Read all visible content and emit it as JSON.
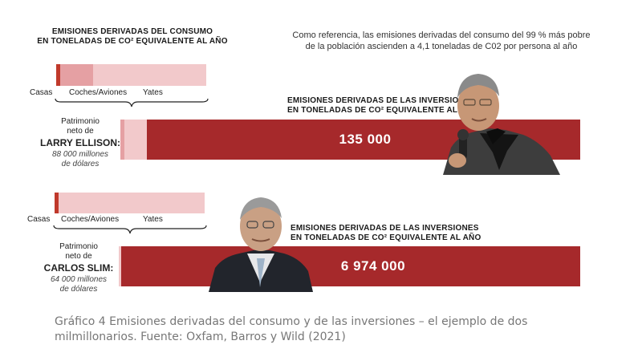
{
  "consumption_title": [
    "EMISIONES DERIVADAS DEL CONSUMO",
    "EN TONELADAS DE CO² EQUIVALENTE AL AÑO"
  ],
  "reference_note": [
    "Como referencia, las emisiones derivadas del consumo del 99 % más pobre",
    "de la población ascienden a 4,1 toneladas de C02 por persona al año"
  ],
  "investment_title": [
    "EMISIONES DERIVADAS DE LAS INVERSIONES",
    "EN TONELADAS DE CO² EQUIVALENTE AL AÑO"
  ],
  "people": [
    {
      "prefix": [
        "Patrimonio",
        "neto de"
      ],
      "name": "LARRY ELLISON:",
      "worth": [
        "88 000 millones",
        "de dólares"
      ],
      "categories": [
        "Casas",
        "Coches/Aviones",
        "Yates"
      ],
      "investment_label": "135 000"
    },
    {
      "prefix": [
        "Patrimonio",
        "neto de"
      ],
      "name": "CARLOS SLIM:",
      "worth": [
        "64 000 millones",
        "de dólares"
      ],
      "categories": [
        "Casas",
        "Coches/Aviones",
        "Yates"
      ],
      "investment_label": "6 974 000"
    }
  ],
  "caption": [
    "Gráfico 4 Emisiones derivadas del consumo y de las inversiones – el ejemplo de dos",
    "milmillonarios. Fuente: Oxfam, Barros y Wild (2021)"
  ],
  "colors": {
    "dark_red": "#a6292b",
    "mid_red": "#e5a0a3",
    "light_red": "#f2c9cb",
    "accent_red": "#c0392b"
  },
  "chart_data": [
    {
      "type": "bar",
      "title": "EMISIONES DERIVADAS DEL CONSUMO EN TONELADAS DE CO² EQUIVALENTE AL AÑO",
      "series": [
        {
          "name": "LARRY ELLISON",
          "categories": [
            "Casas",
            "Coches/Aviones",
            "Yates"
          ],
          "fractions": [
            0.027,
            0.205,
            0.768
          ]
        },
        {
          "name": "CARLOS SLIM",
          "categories": [
            "Casas",
            "Coches/Aviones",
            "Yates"
          ],
          "fractions": [
            0.03,
            0.0,
            0.97
          ]
        }
      ]
    },
    {
      "type": "bar",
      "title": "EMISIONES DERIVADAS DE LAS INVERSIONES EN TONELADAS DE CO² EQUIVALENTE AL AÑO",
      "categories": [
        "LARRY ELLISON",
        "CARLOS SLIM"
      ],
      "values": [
        135000,
        6974000
      ]
    }
  ]
}
